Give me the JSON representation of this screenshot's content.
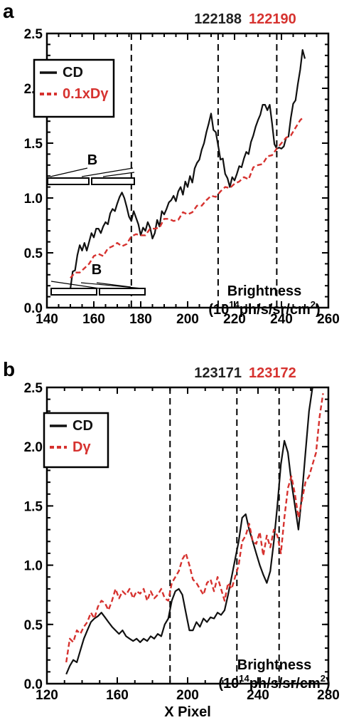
{
  "chart_data": [
    {
      "panel_label": "a",
      "type": "line",
      "shot_numbers": [
        {
          "text": "122188",
          "color": "#222222"
        },
        {
          "text": "122190",
          "color": "#d6322f"
        }
      ],
      "xlim": [
        140,
        260
      ],
      "ylim": [
        0.0,
        2.5
      ],
      "xticks": [
        140,
        160,
        180,
        200,
        220,
        240,
        260
      ],
      "yticks": [
        "0.0",
        "0.5",
        "1.0",
        "1.5",
        "2.0",
        "2.5"
      ],
      "vlines": [
        176,
        213,
        238
      ],
      "field_label": "B",
      "annotation": {
        "line1": "Brightness",
        "prefix": "(10",
        "sup": "14",
        "middle": "ph/s/sr/cm",
        "sup2": "2",
        "suffix": ")"
      },
      "series": [
        {
          "name": "CD",
          "color": "#111111",
          "style": "solid",
          "x": [
            150,
            151,
            152,
            153,
            154,
            155,
            156,
            157,
            158,
            159,
            160,
            161,
            162,
            163,
            164,
            165,
            166,
            167,
            168,
            169,
            170,
            171,
            172,
            173,
            174,
            175,
            176,
            177,
            178,
            179,
            180,
            181,
            182,
            183,
            184,
            185,
            186,
            187,
            188,
            189,
            190,
            191,
            192,
            193,
            194,
            195,
            196,
            197,
            198,
            199,
            200,
            201,
            202,
            203,
            204,
            205,
            206,
            207,
            208,
            209,
            210,
            211,
            212,
            213,
            214,
            215,
            216,
            217,
            218,
            219,
            220,
            221,
            222,
            223,
            224,
            225,
            226,
            227,
            228,
            229,
            230,
            231,
            232,
            233,
            234,
            235,
            236,
            237,
            238,
            239,
            240,
            241,
            242,
            243,
            244,
            245,
            246,
            247,
            248,
            249,
            250
          ],
          "y": [
            0.17,
            0.33,
            0.34,
            0.48,
            0.57,
            0.52,
            0.59,
            0.52,
            0.6,
            0.68,
            0.64,
            0.72,
            0.72,
            0.68,
            0.74,
            0.78,
            0.76,
            0.86,
            0.9,
            0.88,
            0.95,
            1.01,
            1.05,
            1.0,
            0.92,
            0.83,
            0.79,
            0.88,
            0.82,
            0.76,
            0.66,
            0.73,
            0.7,
            0.78,
            0.73,
            0.63,
            0.68,
            0.8,
            0.74,
            0.88,
            0.85,
            0.9,
            0.96,
            0.98,
            1.02,
            0.97,
            1.06,
            1.1,
            1.03,
            1.15,
            1.1,
            1.2,
            1.14,
            1.27,
            1.32,
            1.35,
            1.44,
            1.5,
            1.6,
            1.68,
            1.77,
            1.62,
            1.6,
            1.48,
            1.35,
            1.36,
            1.22,
            1.18,
            1.1,
            1.19,
            1.16,
            1.22,
            1.29,
            1.28,
            1.36,
            1.42,
            1.4,
            1.51,
            1.57,
            1.65,
            1.71,
            1.76,
            1.85,
            1.85,
            1.8,
            1.85,
            1.68,
            1.49,
            1.45,
            1.46,
            1.45,
            1.47,
            1.55,
            1.56,
            1.73,
            1.86,
            1.89,
            2.04,
            2.17,
            2.35,
            2.27
          ]
        },
        {
          "name": "0.1xDγ",
          "color": "#d6322f",
          "style": "dashed",
          "x": [
            150,
            152,
            154,
            156,
            158,
            160,
            162,
            164,
            166,
            168,
            170,
            172,
            174,
            176,
            178,
            180,
            182,
            184,
            186,
            188,
            190,
            192,
            194,
            196,
            198,
            200,
            202,
            204,
            206,
            208,
            210,
            212,
            214,
            216,
            218,
            220,
            222,
            224,
            226,
            228,
            230,
            232,
            234,
            236,
            238,
            240,
            242,
            244,
            246,
            248,
            249
          ],
          "y": [
            0.27,
            0.32,
            0.32,
            0.36,
            0.4,
            0.47,
            0.49,
            0.47,
            0.54,
            0.56,
            0.59,
            0.56,
            0.58,
            0.65,
            0.67,
            0.66,
            0.66,
            0.72,
            0.72,
            0.73,
            0.81,
            0.81,
            0.79,
            0.8,
            0.87,
            0.85,
            0.87,
            0.93,
            0.93,
            0.98,
            1.02,
            1.01,
            1.06,
            1.1,
            1.09,
            1.13,
            1.15,
            1.19,
            1.17,
            1.28,
            1.3,
            1.31,
            1.38,
            1.39,
            1.45,
            1.5,
            1.55,
            1.57,
            1.64,
            1.71,
            1.73
          ]
        }
      ]
    },
    {
      "panel_label": "b",
      "type": "line",
      "shot_numbers": [
        {
          "text": "123171",
          "color": "#222222"
        },
        {
          "text": "123172",
          "color": "#d6322f"
        }
      ],
      "xlim": [
        120,
        280
      ],
      "ylim": [
        0.0,
        2.5
      ],
      "xticks": [
        120,
        160,
        200,
        240,
        280
      ],
      "yticks": [
        "0.0",
        "0.5",
        "1.0",
        "1.5",
        "2.0",
        "2.5"
      ],
      "xlabel": "X Pixel",
      "vlines": [
        190,
        228,
        252
      ],
      "field_label": "B",
      "annotation": {
        "line1": "Brightness",
        "prefix": "(10",
        "sup": "14",
        "middle": "ph/s/sr/cm",
        "sup2": "2",
        "suffix": ")"
      },
      "series": [
        {
          "name": "CD",
          "color": "#111111",
          "style": "solid",
          "x": [
            131,
            133,
            135,
            137,
            139,
            141,
            143,
            145,
            147,
            149,
            151,
            153,
            155,
            157,
            159,
            161,
            163,
            165,
            167,
            169,
            171,
            173,
            175,
            177,
            179,
            181,
            183,
            185,
            187,
            189,
            191,
            193,
            195,
            197,
            199,
            201,
            203,
            205,
            207,
            209,
            211,
            213,
            215,
            217,
            219,
            221,
            223,
            225,
            227,
            229,
            231,
            233,
            235,
            237,
            239,
            241,
            243,
            245,
            247,
            249,
            251,
            253,
            255,
            257,
            259,
            261,
            263,
            265,
            267,
            269,
            271,
            273,
            275
          ],
          "y": [
            0.08,
            0.15,
            0.2,
            0.18,
            0.28,
            0.38,
            0.45,
            0.52,
            0.55,
            0.57,
            0.6,
            0.56,
            0.52,
            0.48,
            0.45,
            0.42,
            0.45,
            0.4,
            0.38,
            0.36,
            0.38,
            0.35,
            0.38,
            0.36,
            0.4,
            0.38,
            0.42,
            0.4,
            0.5,
            0.55,
            0.7,
            0.78,
            0.8,
            0.75,
            0.6,
            0.45,
            0.45,
            0.52,
            0.48,
            0.55,
            0.52,
            0.56,
            0.55,
            0.6,
            0.58,
            0.62,
            0.75,
            0.9,
            1.05,
            1.2,
            1.4,
            1.43,
            1.3,
            1.2,
            1.1,
            1.0,
            0.92,
            0.85,
            0.95,
            1.2,
            1.5,
            1.85,
            2.05,
            1.95,
            1.7,
            1.5,
            1.3,
            1.6,
            1.95,
            2.3,
            2.5,
            2.55,
            2.5
          ]
        },
        {
          "name": "Dγ",
          "color": "#d6322f",
          "style": "dashed",
          "x": [
            131,
            133,
            135,
            137,
            139,
            141,
            143,
            145,
            147,
            149,
            151,
            153,
            155,
            157,
            159,
            161,
            163,
            165,
            167,
            169,
            171,
            173,
            175,
            177,
            179,
            181,
            183,
            185,
            187,
            189,
            191,
            193,
            195,
            197,
            199,
            201,
            203,
            205,
            207,
            209,
            211,
            213,
            215,
            217,
            219,
            221,
            223,
            225,
            227,
            229,
            231,
            233,
            235,
            237,
            239,
            241,
            243,
            245,
            247,
            249,
            251,
            253,
            255,
            257,
            259,
            261,
            263,
            265,
            267,
            269,
            271,
            273,
            275,
            277
          ],
          "y": [
            0.18,
            0.38,
            0.35,
            0.45,
            0.42,
            0.48,
            0.52,
            0.6,
            0.55,
            0.65,
            0.7,
            0.68,
            0.62,
            0.7,
            0.8,
            0.72,
            0.78,
            0.75,
            0.8,
            0.72,
            0.78,
            0.76,
            0.8,
            0.7,
            0.78,
            0.72,
            0.75,
            0.8,
            0.72,
            0.7,
            0.85,
            0.9,
            0.95,
            1.05,
            1.1,
            1.0,
            0.88,
            0.85,
            0.8,
            0.75,
            0.85,
            0.88,
            0.78,
            0.9,
            0.8,
            0.7,
            0.85,
            0.8,
            0.9,
            1.0,
            1.2,
            1.25,
            1.35,
            1.2,
            1.18,
            1.28,
            1.08,
            1.25,
            1.15,
            1.3,
            1.25,
            1.1,
            1.4,
            1.65,
            1.75,
            1.6,
            1.4,
            1.55,
            1.7,
            1.75,
            1.85,
            1.95,
            2.25,
            2.45
          ]
        }
      ]
    }
  ]
}
